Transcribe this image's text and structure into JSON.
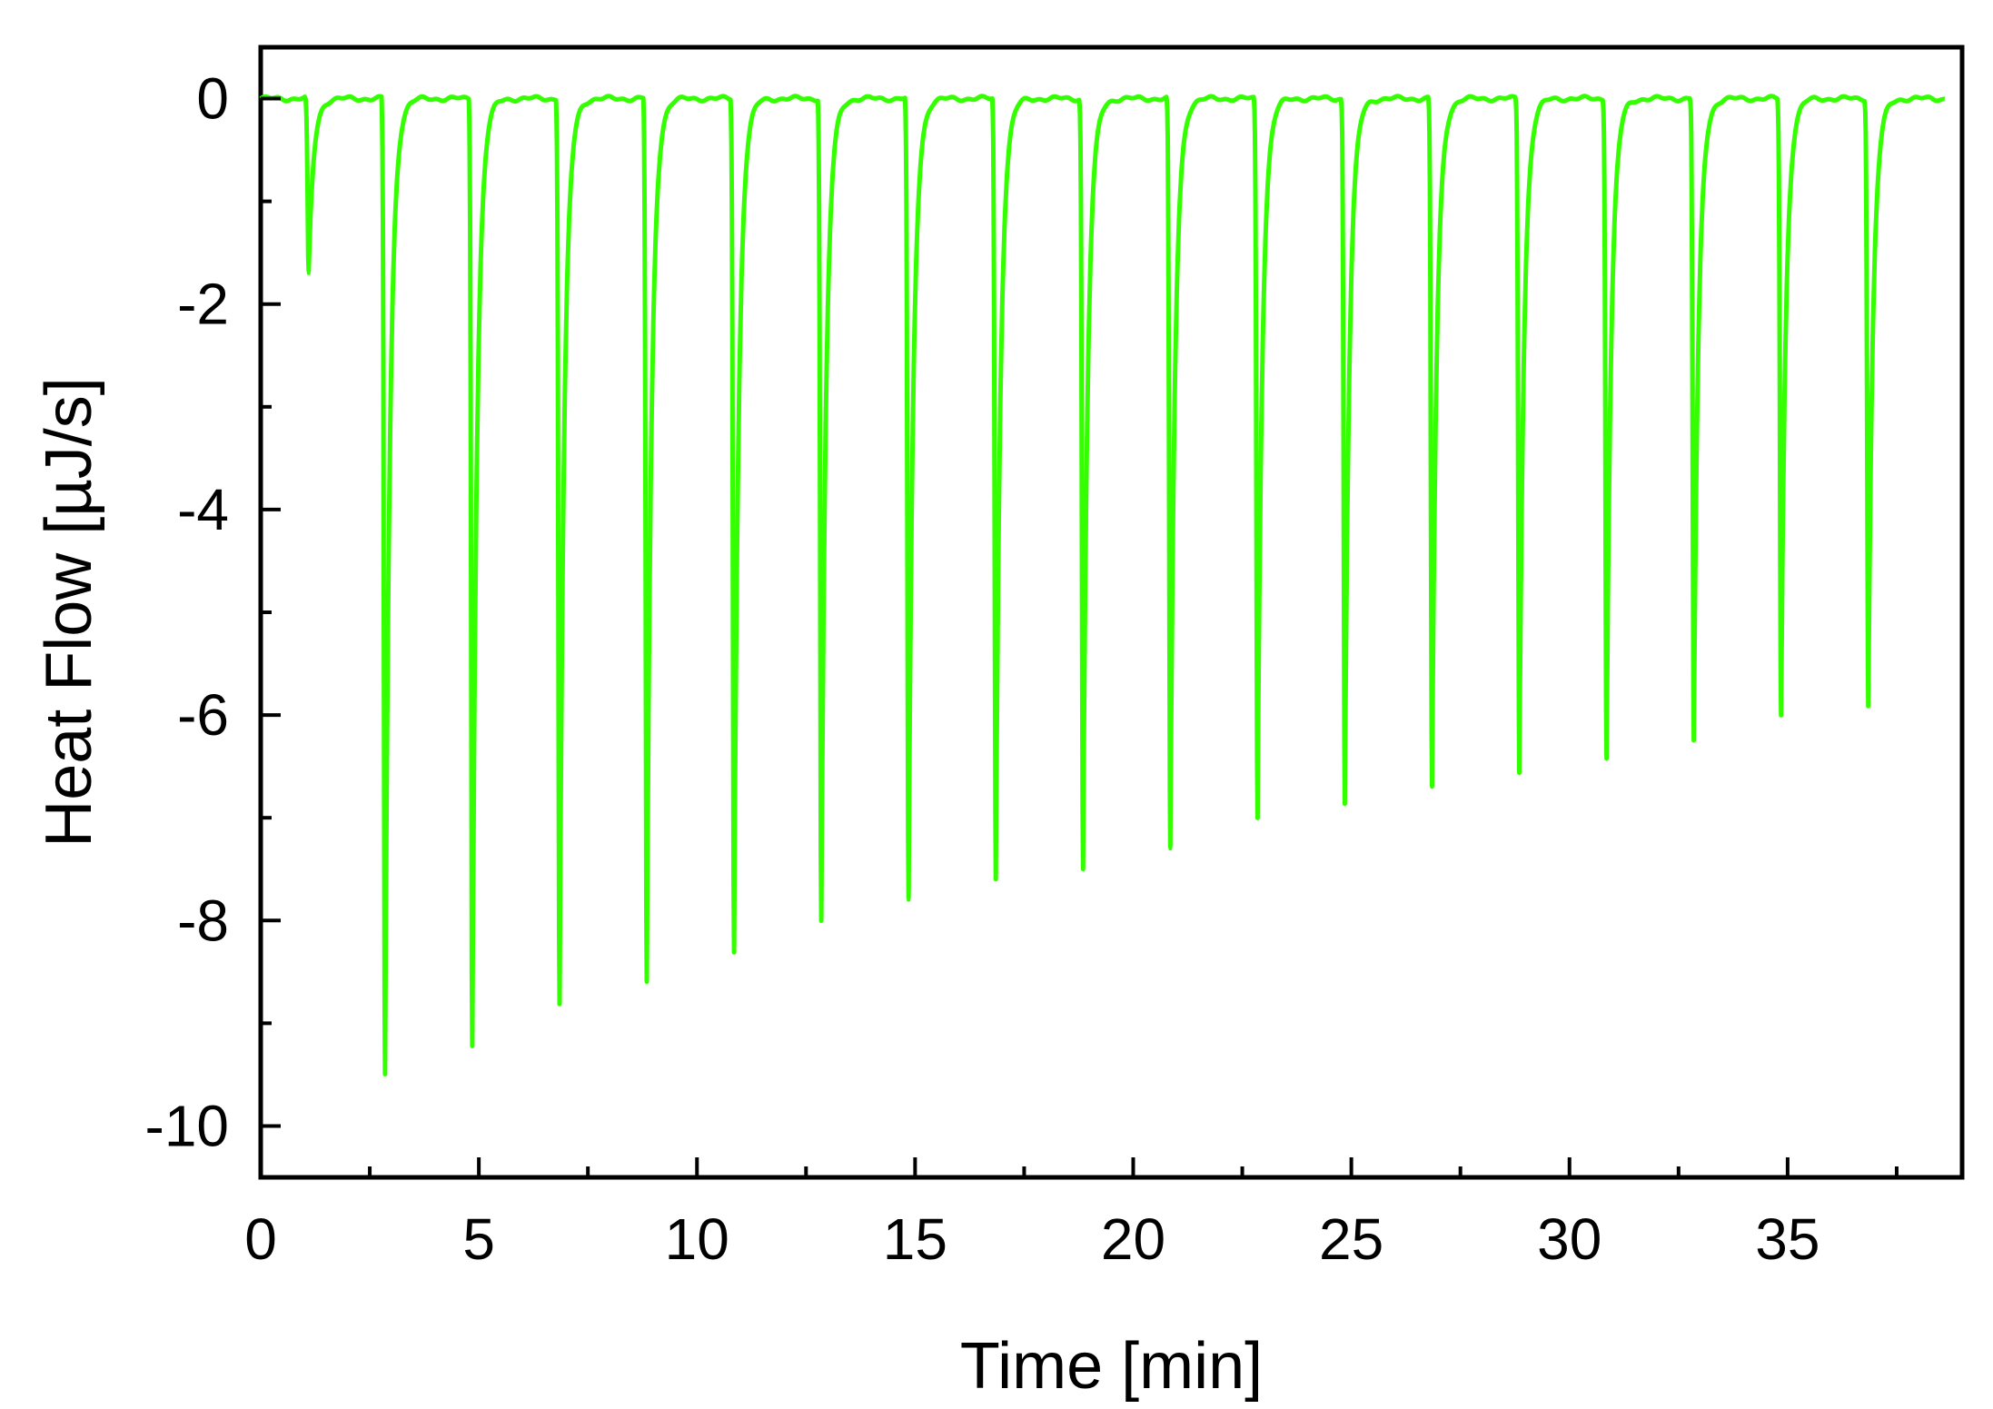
{
  "chart_data": {
    "type": "line",
    "title": "",
    "xlabel": "Time [min]",
    "ylabel": "Heat Flow [µJ/s]",
    "xlim": [
      0,
      39
    ],
    "ylim": [
      -10.5,
      0.5
    ],
    "x_ticks": [
      0,
      5,
      10,
      15,
      20,
      25,
      30,
      35
    ],
    "y_ticks": [
      0,
      -2,
      -4,
      -6,
      -8,
      -10
    ],
    "x_tick_labels": [
      "0",
      "5",
      "10",
      "15",
      "20",
      "25",
      "30",
      "35"
    ],
    "y_tick_labels": [
      "0",
      "-2",
      "-4",
      "-6",
      "-8",
      "-10"
    ],
    "grid": false,
    "legend": "none",
    "series": [
      {
        "color": "#33ff00",
        "baseline": 0,
        "x_start": 0,
        "x_end": 38.6,
        "peaks": [
          {
            "x": 1.1,
            "y": -1.7
          },
          {
            "x": 2.85,
            "y": -9.5
          },
          {
            "x": 4.85,
            "y": -9.2
          },
          {
            "x": 6.85,
            "y": -8.8
          },
          {
            "x": 8.85,
            "y": -8.6
          },
          {
            "x": 10.85,
            "y": -8.3
          },
          {
            "x": 12.85,
            "y": -8.0
          },
          {
            "x": 14.85,
            "y": -7.8
          },
          {
            "x": 16.85,
            "y": -7.6
          },
          {
            "x": 18.85,
            "y": -7.5
          },
          {
            "x": 20.85,
            "y": -7.3
          },
          {
            "x": 22.85,
            "y": -7.0
          },
          {
            "x": 24.85,
            "y": -6.85
          },
          {
            "x": 26.85,
            "y": -6.7
          },
          {
            "x": 28.85,
            "y": -6.55
          },
          {
            "x": 30.85,
            "y": -6.4
          },
          {
            "x": 32.85,
            "y": -6.25
          },
          {
            "x": 34.85,
            "y": -6.0
          },
          {
            "x": 36.85,
            "y": -5.9
          }
        ]
      }
    ]
  }
}
